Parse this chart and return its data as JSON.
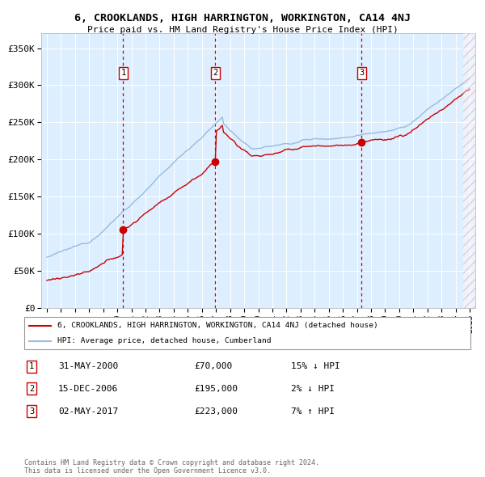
{
  "title": "6, CROOKLANDS, HIGH HARRINGTON, WORKINGTON, CA14 4NJ",
  "subtitle": "Price paid vs. HM Land Registry's House Price Index (HPI)",
  "ylim": [
    0,
    370000
  ],
  "yticks": [
    0,
    50000,
    100000,
    150000,
    200000,
    250000,
    300000,
    350000
  ],
  "ytick_labels": [
    "£0",
    "£50K",
    "£100K",
    "£150K",
    "£200K",
    "£250K",
    "£300K",
    "£350K"
  ],
  "plot_bg": "#ddeeff",
  "sale_color": "#cc0000",
  "hpi_color": "#99bbdd",
  "vline_color": "#cc0000",
  "transactions": [
    {
      "date_num": 2000.42,
      "price": 70000,
      "label": "1"
    },
    {
      "date_num": 2006.96,
      "price": 195000,
      "label": "2"
    },
    {
      "date_num": 2017.34,
      "price": 223000,
      "label": "3"
    }
  ],
  "legend_entries": [
    "6, CROOKLANDS, HIGH HARRINGTON, WORKINGTON, CA14 4NJ (detached house)",
    "HPI: Average price, detached house, Cumberland"
  ],
  "table_rows": [
    {
      "num": "1",
      "date": "31-MAY-2000",
      "price": "£70,000",
      "hpi": "15% ↓ HPI"
    },
    {
      "num": "2",
      "date": "15-DEC-2006",
      "price": "£195,000",
      "hpi": "2% ↓ HPI"
    },
    {
      "num": "3",
      "date": "02-MAY-2017",
      "price": "£223,000",
      "hpi": "7% ↑ HPI"
    }
  ],
  "footnote": "Contains HM Land Registry data © Crown copyright and database right 2024.\nThis data is licensed under the Open Government Licence v3.0.",
  "xtick_years": [
    1995,
    1996,
    1997,
    1998,
    1999,
    2000,
    2001,
    2002,
    2003,
    2004,
    2005,
    2006,
    2007,
    2008,
    2009,
    2010,
    2011,
    2012,
    2013,
    2014,
    2015,
    2016,
    2017,
    2018,
    2019,
    2020,
    2021,
    2022,
    2023,
    2024,
    2025
  ]
}
